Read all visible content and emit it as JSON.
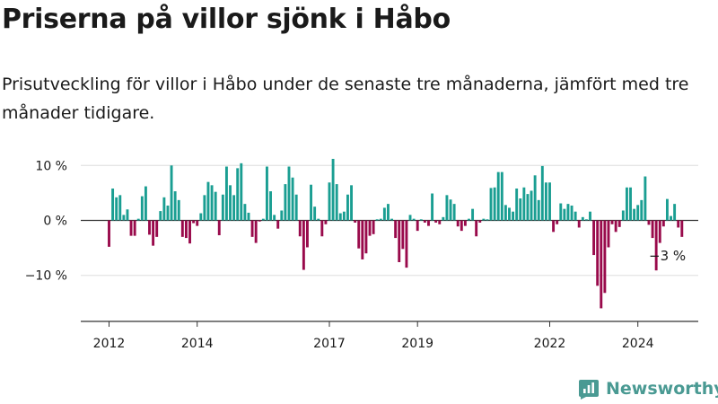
{
  "title": "Priserna på villor sjönk i Håbo",
  "subtitle": "Prisutveckling för villor i Håbo under de senaste tre månaderna, jämfört med tre månader tidigare.",
  "brand": "Newsworthy",
  "colors": {
    "positive": "#1a9e92",
    "negative": "#990a4b",
    "grid": "#dddddd",
    "axis": "#333333",
    "brand": "#4a9a93"
  },
  "chart_data": {
    "type": "bar",
    "title": "Priserna på villor sjönk i Håbo",
    "xlabel": "",
    "ylabel": "",
    "ylim": [
      -18,
      12.5
    ],
    "y_ticks": [
      {
        "value": 10,
        "label": "10 %"
      },
      {
        "value": 0,
        "label": "0 %"
      },
      {
        "value": -10,
        "label": "−10 %"
      }
    ],
    "x_ticks": [
      {
        "year": 2012,
        "label": "2012"
      },
      {
        "year": 2014,
        "label": "2014"
      },
      {
        "year": 2017,
        "label": "2017"
      },
      {
        "year": 2019,
        "label": "2019"
      },
      {
        "year": 2022,
        "label": "2022"
      },
      {
        "year": 2024,
        "label": "2024"
      }
    ],
    "grid": true,
    "start": "2012-01",
    "frequency": "monthly",
    "unit": "%",
    "values": [
      -4.8,
      5.8,
      4.2,
      4.6,
      1.0,
      2.0,
      -2.8,
      -2.8,
      0.3,
      4.4,
      6.2,
      -2.6,
      -4.6,
      -3.0,
      1.7,
      4.2,
      2.7,
      10.0,
      5.3,
      3.7,
      -3.0,
      -3.2,
      -4.2,
      -0.5,
      -1.0,
      1.3,
      4.6,
      7.0,
      6.4,
      5.2,
      -2.7,
      4.7,
      9.8,
      6.4,
      4.6,
      9.5,
      10.4,
      3.0,
      1.4,
      -3.0,
      -4.1,
      -0.2,
      0.3,
      9.8,
      5.3,
      1.0,
      -1.5,
      1.8,
      6.6,
      9.8,
      7.8,
      4.7,
      -2.9,
      -9.0,
      -4.9,
      6.5,
      2.5,
      0.3,
      -2.9,
      -0.7,
      6.9,
      11.2,
      6.6,
      1.3,
      1.6,
      4.7,
      6.4,
      -0.4,
      -5.1,
      -7.1,
      -6.0,
      -2.8,
      -2.5,
      0.2,
      0.3,
      2.3,
      3.0,
      0.3,
      -3.2,
      -7.6,
      -5.2,
      -8.6,
      1.0,
      0.3,
      -1.9,
      0.2,
      -0.4,
      -1.0,
      4.9,
      -0.4,
      -0.7,
      0.6,
      4.6,
      3.8,
      3.0,
      -1.1,
      -1.9,
      -1.0,
      0.3,
      2.1,
      -2.9,
      -0.4,
      0.3,
      0.2,
      5.9,
      6.0,
      8.8,
      8.8,
      2.8,
      2.3,
      1.6,
      5.8,
      4.0,
      6.0,
      4.8,
      5.4,
      8.2,
      3.7,
      9.9,
      6.9,
      6.9,
      -2.1,
      -0.7,
      3.1,
      2.1,
      3.0,
      2.7,
      1.6,
      -1.3,
      0.6,
      0.2,
      1.6,
      -6.3,
      -11.9,
      -16.0,
      -13.2,
      -4.9,
      -0.7,
      -2.1,
      -1.2,
      1.8,
      6.0,
      6.0,
      2.1,
      2.8,
      3.7,
      8.0,
      -0.8,
      -3.2,
      -9.1,
      -4.1,
      -1.1,
      3.9,
      0.8,
      3.0,
      -1.3,
      -3.0
    ],
    "annotation": "−3 %"
  }
}
